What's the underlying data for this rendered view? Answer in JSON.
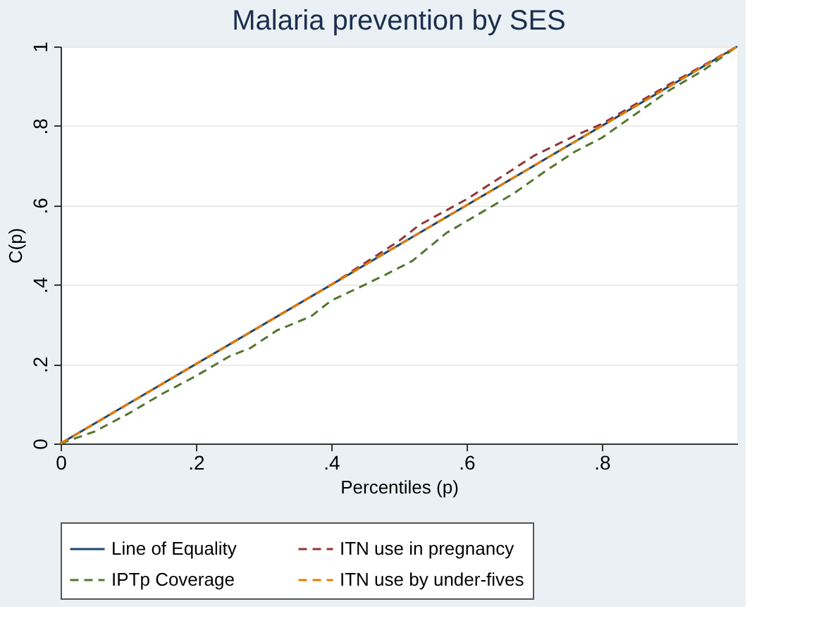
{
  "chart_data": {
    "type": "line",
    "title": "Malaria prevention by SES",
    "xlabel": "Percentiles (p)",
    "ylabel": "C(p)",
    "xlim": [
      0,
      1
    ],
    "ylim": [
      0,
      1
    ],
    "xticks": [
      0,
      {
        "value": 0.2,
        "label": ".2"
      },
      {
        "value": 0.4,
        "label": ".4"
      },
      {
        "value": 0.6,
        "label": ".6"
      },
      {
        "value": 0.8,
        "label": ".8"
      }
    ],
    "yticks": [
      0,
      {
        "value": 0.2,
        "label": ".2"
      },
      {
        "value": 0.4,
        "label": ".4"
      },
      {
        "value": 0.6,
        "label": ".6"
      },
      {
        "value": 0.8,
        "label": ".8"
      },
      1
    ],
    "grid": "y",
    "legend": "bottom",
    "marker": "none",
    "series": [
      {
        "name": "Line of Equality",
        "color": "#1a476f",
        "line_style": "solid",
        "x": [
          0,
          1
        ],
        "values": [
          0,
          1
        ]
      },
      {
        "name": "IPTp Coverage",
        "color": "#55752f",
        "line_style": "dashed",
        "x": [
          0,
          0.05,
          0.1,
          0.15,
          0.2,
          0.25,
          0.28,
          0.32,
          0.37,
          0.4,
          0.45,
          0.48,
          0.52,
          0.57,
          0.62,
          0.67,
          0.72,
          0.76,
          0.8,
          0.85,
          0.9,
          0.95,
          1
        ],
        "values": [
          0,
          0.03,
          0.075,
          0.125,
          0.17,
          0.22,
          0.24,
          0.285,
          0.32,
          0.36,
          0.4,
          0.425,
          0.46,
          0.53,
          0.58,
          0.63,
          0.69,
          0.735,
          0.77,
          0.83,
          0.89,
          0.94,
          1
        ]
      },
      {
        "name": "ITN use in pregnancy",
        "color": "#90353b",
        "line_style": "dashed",
        "x": [
          0,
          0.2,
          0.4,
          0.5,
          0.53,
          0.6,
          0.7,
          0.76,
          0.8,
          0.9,
          1
        ],
        "values": [
          0,
          0.2,
          0.4,
          0.51,
          0.55,
          0.615,
          0.725,
          0.775,
          0.805,
          0.905,
          1
        ]
      },
      {
        "name": "ITN use by under-fives",
        "color": "#e37e00",
        "line_style": "dashed",
        "x": [
          0,
          0.2,
          0.4,
          0.6,
          0.8,
          1
        ],
        "values": [
          0,
          0.2,
          0.4,
          0.6,
          0.8,
          1
        ]
      }
    ]
  }
}
